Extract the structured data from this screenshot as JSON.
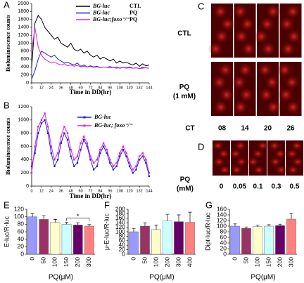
{
  "chart_data": [
    {
      "type": "line",
      "panel": "A",
      "x_label": "Time in DD(hr)",
      "y_label": "Bioluminescence counts",
      "x": [
        0,
        4,
        8,
        12,
        16,
        20,
        24,
        28,
        32,
        36,
        40,
        44,
        48,
        52,
        56,
        60,
        64,
        68,
        72,
        76,
        80,
        84,
        88,
        92,
        96,
        100,
        104,
        108,
        112,
        116,
        120,
        124,
        128,
        132,
        136,
        140,
        144
      ],
      "xlim": [
        0,
        144
      ],
      "xticks": [
        0,
        12,
        24,
        36,
        48,
        60,
        72,
        84,
        96,
        108,
        120,
        132,
        144
      ],
      "ylim": [
        0,
        2000
      ],
      "yticks": [
        0,
        200,
        400,
        600,
        800,
        1000,
        1200,
        1400,
        1600,
        1800,
        2000
      ],
      "series": [
        {
          "name": "BG-luc",
          "condition": "CTL",
          "color": "#000000",
          "values": [
            400,
            1500,
            1700,
            1600,
            1400,
            1300,
            1200,
            1100,
            1150,
            1000,
            950,
            900,
            1000,
            850,
            800,
            850,
            750,
            800,
            700,
            650,
            700,
            600,
            650,
            600,
            550,
            600,
            500,
            550,
            500,
            520,
            480,
            450,
            500,
            420,
            480,
            430,
            450
          ]
        },
        {
          "name": "BG-luc",
          "condition": "PQ",
          "color": "#1f1fd6",
          "values": [
            100,
            300,
            600,
            800,
            750,
            700,
            650,
            700,
            600,
            550,
            500,
            520,
            480,
            450,
            500,
            420,
            450,
            400,
            430,
            400,
            420,
            380,
            400,
            390,
            410,
            380,
            400,
            370,
            390,
            380,
            400,
            370,
            380,
            360,
            390,
            380,
            370
          ]
        },
        {
          "name": "BG-luc;foxo⁻/⁻",
          "condition": "PQ",
          "color": "#e020e0",
          "values": [
            800,
            1400,
            900,
            700,
            600,
            550,
            500,
            520,
            480,
            450,
            480,
            430,
            450,
            420,
            440,
            400,
            420,
            400,
            410,
            390,
            400,
            380,
            400,
            390,
            380,
            390,
            370,
            380,
            390,
            370,
            380,
            370,
            380,
            360,
            370,
            380,
            370
          ]
        }
      ]
    },
    {
      "type": "line",
      "panel": "B",
      "x_label": "Time in DD(hr)",
      "y_label": "Bioluminescence counts",
      "x": [
        0,
        4,
        8,
        12,
        16,
        20,
        24,
        28,
        32,
        36,
        40,
        44,
        48,
        52,
        56,
        60,
        64,
        68,
        72,
        76,
        80,
        84,
        88,
        92,
        96,
        100,
        104,
        108,
        112,
        116,
        120,
        124,
        128,
        132,
        136,
        140,
        144
      ],
      "xlim": [
        0,
        144
      ],
      "xticks": [
        0,
        12,
        24,
        36,
        48,
        60,
        72,
        84,
        96,
        108,
        120,
        132,
        144
      ],
      "ylim": [
        0,
        1200
      ],
      "yticks": [
        0,
        200,
        400,
        600,
        800,
        1000,
        1200
      ],
      "markers": true,
      "series": [
        {
          "name": "BG-luc",
          "color": "#1f1fd6",
          "values": [
            300,
            500,
            800,
            950,
            1000,
            800,
            500,
            300,
            400,
            650,
            800,
            700,
            450,
            300,
            350,
            550,
            700,
            600,
            400,
            250,
            300,
            500,
            600,
            500,
            350,
            250,
            300,
            450,
            550,
            450,
            300,
            200,
            250,
            400,
            450,
            350,
            150
          ]
        },
        {
          "name": "BG-luc; foxo⁻/⁻",
          "color": "#e020e0",
          "values": [
            200,
            600,
            900,
            1000,
            1100,
            900,
            600,
            400,
            500,
            750,
            900,
            800,
            550,
            400,
            450,
            650,
            750,
            650,
            450,
            350,
            400,
            550,
            650,
            550,
            400,
            300,
            350,
            500,
            600,
            500,
            350,
            250,
            300,
            450,
            500,
            400,
            200
          ]
        }
      ]
    },
    {
      "type": "bar",
      "panel": "E",
      "x_label": "PQ(μM)",
      "y_label": "E-luc/R-luc",
      "categories": [
        "0",
        "50",
        "100",
        "150",
        "200",
        "300"
      ],
      "values": [
        100,
        93,
        85,
        80,
        78,
        75
      ],
      "errors": [
        8,
        10,
        8,
        5,
        6,
        4
      ],
      "colors": [
        "#9999ff",
        "#993366",
        "#ffffcc",
        "#ccffff",
        "#660066",
        "#ff8080"
      ],
      "ylim": [
        0,
        120
      ],
      "yticks": [
        0,
        20,
        40,
        60,
        80,
        100,
        120
      ],
      "significance": {
        "between": [
          "150",
          "300"
        ],
        "label": "*"
      }
    },
    {
      "type": "bar",
      "panel": "F",
      "x_label": "PQ(μM)",
      "y_label": "μ-E-luc/R-luc",
      "categories": [
        "0",
        "50",
        "100",
        "200",
        "300",
        "400"
      ],
      "values": [
        100,
        125,
        110,
        148,
        145,
        142
      ],
      "errors": [
        15,
        15,
        20,
        30,
        30,
        45
      ],
      "colors": [
        "#9999ff",
        "#993366",
        "#ffffcc",
        "#ccffff",
        "#660066",
        "#ff8080"
      ],
      "ylim": [
        0,
        200
      ],
      "yticks": [
        0,
        20,
        40,
        60,
        80,
        100,
        120,
        140,
        160,
        180,
        200
      ]
    },
    {
      "type": "bar",
      "panel": "G",
      "x_label": "PQ(μM)",
      "y_label": "Dipt-luc/R-luc",
      "categories": [
        "0",
        "50",
        "100",
        "150",
        "200",
        "300"
      ],
      "values": [
        100,
        92,
        98,
        100,
        102,
        125
      ],
      "errors": [
        8,
        5,
        5,
        5,
        5,
        20
      ],
      "colors": [
        "#9999ff",
        "#993366",
        "#ffffcc",
        "#ccffff",
        "#660066",
        "#ff8080"
      ],
      "ylim": [
        0,
        160
      ],
      "yticks": [
        0,
        20,
        40,
        60,
        80,
        100,
        120,
        140,
        160
      ]
    }
  ],
  "panel_c": {
    "panel": "C",
    "rows": [
      [
        "CTL"
      ],
      [
        "PQ",
        "(1 mM)"
      ]
    ],
    "column_title": "CT",
    "columns": [
      "08",
      "14",
      "20",
      "26"
    ]
  },
  "panel_d": {
    "panel": "D",
    "row": [
      "PQ",
      "(mM)"
    ],
    "columns": [
      "0",
      "0.05",
      "0.1",
      "0.3",
      "0.5"
    ]
  }
}
